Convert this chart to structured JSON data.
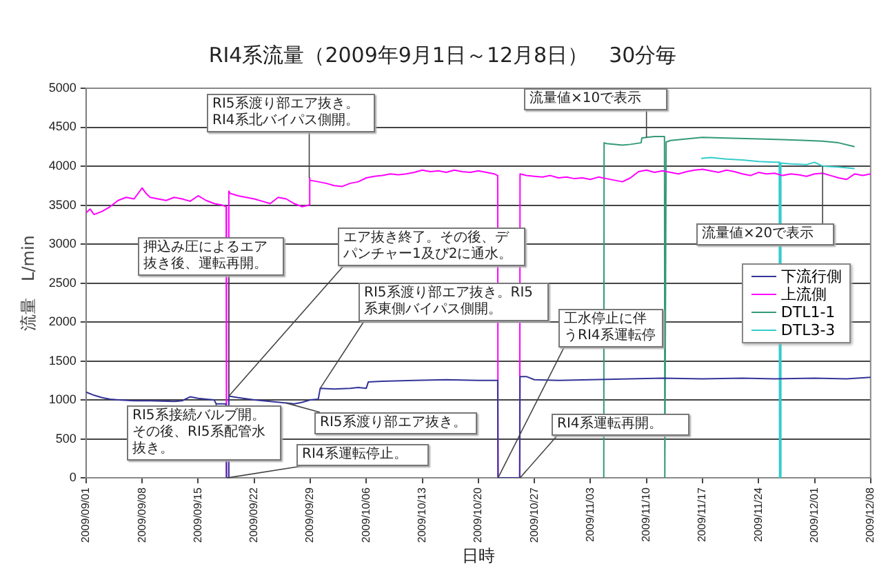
{
  "chart_data": {
    "type": "line",
    "title": "RI4系流量（2009年9月1日～12月8日）　30分毎",
    "xlabel": "日時",
    "ylabel": "流量　L/min",
    "xlim": [
      "2009-09-01",
      "2009-12-08"
    ],
    "xticks": [
      {
        "value": "2009-09-01",
        "label": "2009/09/01"
      },
      {
        "value": "2009-09-08",
        "label": "2009/09/08"
      },
      {
        "value": "2009-09-15",
        "label": "2009/09/15"
      },
      {
        "value": "2009-09-22",
        "label": "2009/09/22"
      },
      {
        "value": "2009-09-29",
        "label": "2009/09/29"
      },
      {
        "value": "2009-10-06",
        "label": "2009/10/06"
      },
      {
        "value": "2009-10-13",
        "label": "2009/10/13"
      },
      {
        "value": "2009-10-20",
        "label": "2009/10/20"
      },
      {
        "value": "2009-10-27",
        "label": "2009/10/27"
      },
      {
        "value": "2009-11-03",
        "label": "2009/11/03"
      },
      {
        "value": "2009-11-10",
        "label": "2009/11/10"
      },
      {
        "value": "2009-11-17",
        "label": "2009/11/17"
      },
      {
        "value": "2009-11-24",
        "label": "2009/11/24"
      },
      {
        "value": "2009-12-01",
        "label": "2009/12/01"
      },
      {
        "value": "2009-12-08",
        "label": "2009/12/08"
      }
    ],
    "ylim": [
      0,
      5000
    ],
    "yticks": [
      0,
      500,
      1000,
      1500,
      2000,
      2500,
      3000,
      3500,
      4000,
      4500,
      5000
    ],
    "grid": "y",
    "legend": "right",
    "series": [
      {
        "name": "下流行側",
        "color": "#333399",
        "x": [
          "2009-09-01",
          "2009-09-02",
          "2009-09-03",
          "2009-09-04",
          "2009-09-05",
          "2009-09-07",
          "2009-09-09",
          "2009-09-12",
          "2009-09-13",
          "2009-09-14",
          "2009-09-15",
          "2009-09-16",
          "2009-09-17",
          "2009-09-17T06:00",
          "2009-09-18T11:00",
          "2009-09-18T13:00",
          "2009-09-18T18:00",
          "2009-09-18T20:00",
          "2009-09-20",
          "2009-09-22",
          "2009-09-24",
          "2009-09-26",
          "2009-09-27",
          "2009-09-28",
          "2009-09-29",
          "2009-09-30",
          "2009-09-30T06:00",
          "2009-10-02",
          "2009-10-04",
          "2009-10-05",
          "2009-10-06",
          "2009-10-06T06:00",
          "2009-10-08",
          "2009-10-12",
          "2009-10-16",
          "2009-10-20",
          "2009-10-22",
          "2009-10-22T10:00",
          "2009-10-22T11:00",
          "2009-10-25T04:00",
          "2009-10-25T05:00",
          "2009-10-26",
          "2009-10-27",
          "2009-10-30",
          "2009-11-03",
          "2009-11-08",
          "2009-11-12",
          "2009-11-17",
          "2009-11-22",
          "2009-11-26",
          "2009-12-01",
          "2009-12-05",
          "2009-12-08"
        ],
        "values": [
          1100,
          1060,
          1030,
          1010,
          1000,
          990,
          990,
          980,
          990,
          1040,
          1020,
          1010,
          1000,
          950,
          950,
          0,
          0,
          1050,
          1030,
          1000,
          980,
          960,
          950,
          970,
          1000,
          1010,
          1150,
          1140,
          1150,
          1160,
          1150,
          1230,
          1240,
          1250,
          1260,
          1250,
          1250,
          1250,
          0,
          0,
          1300,
          1300,
          1260,
          1250,
          1260,
          1270,
          1280,
          1270,
          1280,
          1270,
          1280,
          1270,
          1290
        ]
      },
      {
        "name": "上流側",
        "color": "#ff00ff",
        "x": [
          "2009-09-01",
          "2009-09-01T12:00",
          "2009-09-02",
          "2009-09-03",
          "2009-09-04",
          "2009-09-05",
          "2009-09-06",
          "2009-09-07",
          "2009-09-08",
          "2009-09-08T12:00",
          "2009-09-09",
          "2009-09-10",
          "2009-09-11",
          "2009-09-12",
          "2009-09-13",
          "2009-09-14",
          "2009-09-15",
          "2009-09-16",
          "2009-09-17",
          "2009-09-18",
          "2009-09-18T12:00",
          "2009-09-18T13:00",
          "2009-09-18T18:00",
          "2009-09-18T20:00",
          "2009-09-19",
          "2009-09-20",
          "2009-09-21",
          "2009-09-22",
          "2009-09-23",
          "2009-09-24",
          "2009-09-25",
          "2009-09-26",
          "2009-09-27",
          "2009-09-28",
          "2009-09-28T20:00",
          "2009-09-28T21:00",
          "2009-09-29",
          "2009-09-30",
          "2009-10-01",
          "2009-10-02",
          "2009-10-03",
          "2009-10-04",
          "2009-10-05",
          "2009-10-06",
          "2009-10-07",
          "2009-10-08",
          "2009-10-09",
          "2009-10-10",
          "2009-10-11",
          "2009-10-12",
          "2009-10-13",
          "2009-10-14",
          "2009-10-15",
          "2009-10-16",
          "2009-10-17",
          "2009-10-18",
          "2009-10-19",
          "2009-10-20",
          "2009-10-21",
          "2009-10-22",
          "2009-10-22T10:00",
          "2009-10-22T11:00",
          "2009-10-25T04:00",
          "2009-10-25T05:00",
          "2009-10-26",
          "2009-10-27",
          "2009-10-28",
          "2009-10-29",
          "2009-10-30",
          "2009-10-31",
          "2009-11-01",
          "2009-11-02",
          "2009-11-03",
          "2009-11-04",
          "2009-11-05",
          "2009-11-06",
          "2009-11-07",
          "2009-11-08",
          "2009-11-09",
          "2009-11-10",
          "2009-11-11",
          "2009-11-12",
          "2009-11-13",
          "2009-11-14",
          "2009-11-15",
          "2009-11-16",
          "2009-11-17",
          "2009-11-18",
          "2009-11-19",
          "2009-11-20",
          "2009-11-21",
          "2009-11-22",
          "2009-11-23",
          "2009-11-24",
          "2009-11-25",
          "2009-11-26",
          "2009-11-27",
          "2009-11-28",
          "2009-11-29",
          "2009-11-30",
          "2009-12-01",
          "2009-12-02",
          "2009-12-03",
          "2009-12-04",
          "2009-12-05",
          "2009-12-06",
          "2009-12-07",
          "2009-12-08"
        ],
        "values": [
          3400,
          3450,
          3380,
          3420,
          3480,
          3560,
          3600,
          3580,
          3720,
          3650,
          3600,
          3580,
          3560,
          3600,
          3580,
          3550,
          3620,
          3560,
          3520,
          3500,
          3480,
          0,
          0,
          3680,
          3650,
          3620,
          3600,
          3580,
          3550,
          3520,
          3600,
          3580,
          3520,
          3480,
          3500,
          3850,
          3820,
          3800,
          3780,
          3750,
          3740,
          3780,
          3800,
          3850,
          3870,
          3880,
          3900,
          3890,
          3900,
          3920,
          3950,
          3930,
          3940,
          3920,
          3950,
          3930,
          3920,
          3940,
          3920,
          3900,
          3880,
          0,
          0,
          3900,
          3880,
          3870,
          3860,
          3880,
          3850,
          3860,
          3840,
          3850,
          3830,
          3860,
          3840,
          3820,
          3800,
          3850,
          3930,
          3950,
          3920,
          3940,
          3920,
          3900,
          3930,
          3950,
          3960,
          3940,
          3920,
          3950,
          3930,
          3900,
          3880,
          3920,
          3900,
          3910,
          3880,
          3900,
          3890,
          3870,
          3900,
          3910,
          3880,
          3850,
          3830,
          3900,
          3880,
          3900
        ]
      },
      {
        "name": "DTL1-1",
        "color": "#339977",
        "x": [
          "2009-11-04T16:00",
          "2009-11-04T17:00",
          "2009-11-05",
          "2009-11-07",
          "2009-11-08",
          "2009-11-09T08:00",
          "2009-11-09T10:00",
          "2009-11-10",
          "2009-11-11",
          "2009-11-12T06:00",
          "2009-11-12T07:00",
          "2009-11-12T10:00",
          "2009-11-12T11:00",
          "2009-11-13",
          "2009-11-15",
          "2009-11-17",
          "2009-11-20",
          "2009-11-24",
          "2009-11-27",
          "2009-11-30",
          "2009-12-02",
          "2009-12-04",
          "2009-12-06"
        ],
        "values": [
          0,
          4300,
          4290,
          4270,
          4280,
          4300,
          4360,
          4370,
          4380,
          4380,
          0,
          0,
          4310,
          4330,
          4350,
          4370,
          4360,
          4350,
          4340,
          4330,
          4320,
          4300,
          4250
        ]
      },
      {
        "name": "DTL3-3",
        "color": "#33cccc",
        "x": [
          "2009-11-16T20:00",
          "2009-11-18",
          "2009-11-20",
          "2009-11-22",
          "2009-11-24",
          "2009-11-26",
          "2009-11-26T14:00",
          "2009-11-26T15:00",
          "2009-11-26T18:00",
          "2009-11-26T19:00",
          "2009-11-28",
          "2009-11-30",
          "2009-12-01",
          "2009-12-02",
          "2009-12-04",
          "2009-12-06"
        ],
        "values": [
          4100,
          4110,
          4090,
          4080,
          4060,
          4050,
          4050,
          0,
          0,
          4040,
          4030,
          4020,
          4050,
          4000,
          3990,
          3970
        ]
      }
    ],
    "annotations": [
      {
        "text": "RI5系渡り部エア抜き。RI4系北バイパス側開。",
        "x": "2009-09-28T21:00",
        "y": 3850
      },
      {
        "text": "押込み圧によるエア抜き後、運転再開。",
        "x": "2009-09-18T20:00",
        "y": 1050
      },
      {
        "text": "エア抜き終了。その後、デパンチャー1及び2に通水。",
        "x": "2009-09-18T20:00",
        "y": 1050
      },
      {
        "text": "RI5系接続バルブ開。その後、RI5系配管水抜き。",
        "x": "2009-09-17T06:00",
        "y": 950
      },
      {
        "text": "RI4系運転停止。",
        "x": "2009-09-18T15:00",
        "y": 0
      },
      {
        "text": "RI5系渡り部エア抜き。",
        "x": "2009-09-26",
        "y": 960
      },
      {
        "text": "RI5系渡り部エア抜き。RI5系東側バイパス側開。",
        "x": "2009-09-30T06:00",
        "y": 1150
      },
      {
        "text": "工水停止に伴うRI4系運転停",
        "x": "2009-10-22T11:00",
        "y": 0
      },
      {
        "text": "RI4系運転再開。",
        "x": "2009-10-25T05:00",
        "y": 0
      },
      {
        "text": "流量値×10で表示",
        "x": "2009-11-10",
        "y": 4370
      },
      {
        "text": "流量値×20で表示",
        "x": "2009-12-02",
        "y": 4000
      }
    ]
  }
}
